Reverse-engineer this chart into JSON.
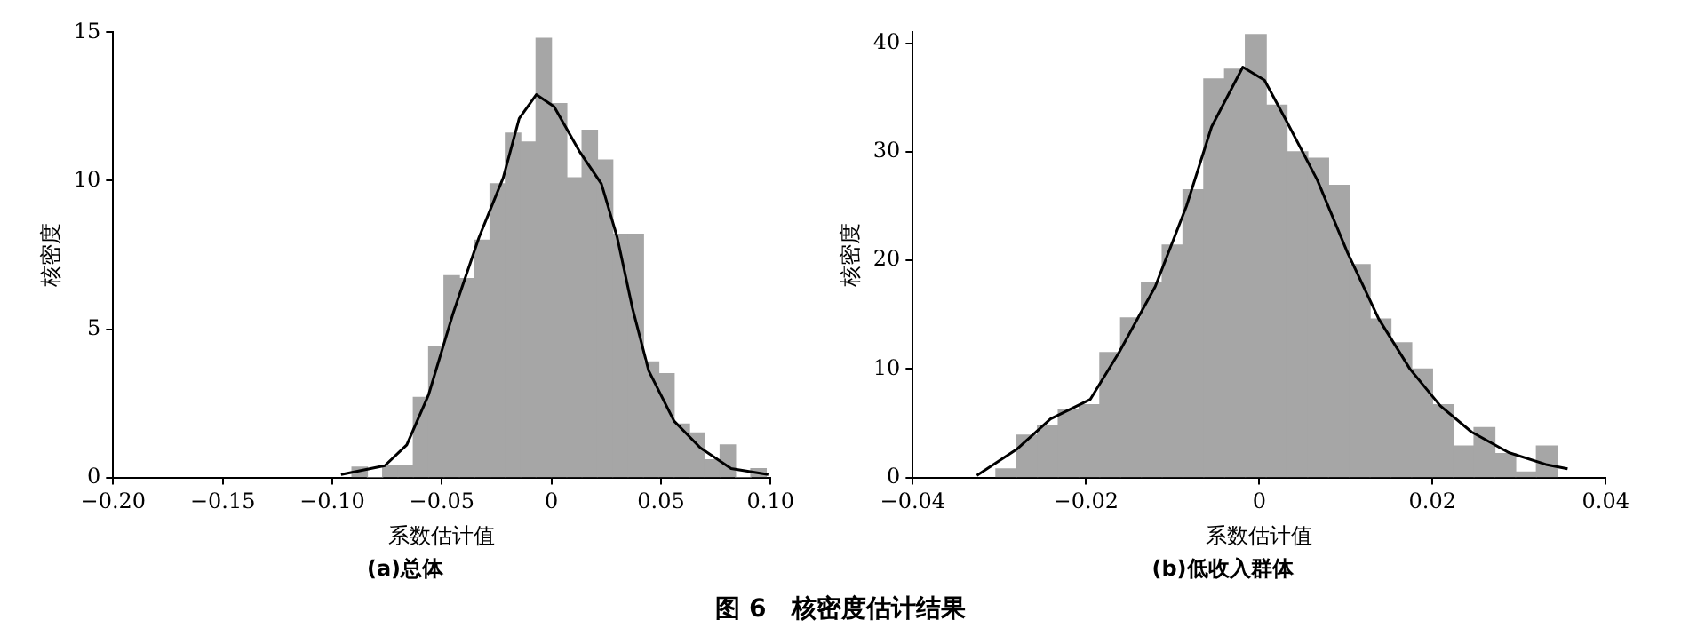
{
  "chart_data": [
    {
      "type": "histogram",
      "title": "(a)总体",
      "xlabel": "系数估计值",
      "ylabel": "核密度",
      "color": "#a6a6a6",
      "bins": [
        -0.091,
        -0.084,
        -0.077,
        -0.07,
        -0.063,
        -0.056,
        -0.049,
        -0.042,
        -0.035,
        -0.028,
        -0.021,
        -0.014,
        -0.007,
        0,
        0.007,
        0.014,
        0.021,
        0.028,
        0.035,
        0.042,
        0.049,
        0.056,
        0.063,
        0.07,
        0.077,
        0.084,
        0.091,
        0.098
      ],
      "values": [
        0.35,
        0,
        0.4,
        0.4,
        2.7,
        4.4,
        6.8,
        6.7,
        8.0,
        9.9,
        11.6,
        11.3,
        14.8,
        12.6,
        10.1,
        11.7,
        10.7,
        8.2,
        8.2,
        3.9,
        3.5,
        1.8,
        1.5,
        0.6,
        1.1,
        0,
        0.3
      ],
      "series": [
        {
          "type": "line",
          "color": "#000000",
          "x": [
            -0.096,
            -0.076,
            -0.066,
            -0.056,
            -0.045,
            -0.033,
            -0.022,
            -0.0147,
            -0.0069,
            0.0012,
            0.0127,
            0.0228,
            0.03,
            0.037,
            0.0444,
            0.056,
            0.068,
            0.082,
            0.099
          ],
          "values": [
            0.1,
            0.4,
            1.1,
            2.8,
            5.5,
            8.1,
            10.1,
            12.1,
            12.9,
            12.5,
            11.0,
            9.9,
            8.1,
            5.7,
            3.6,
            1.9,
            1.0,
            0.3,
            0.1
          ]
        }
      ],
      "marker": "none",
      "grid": false,
      "legend": false,
      "xlim": [
        -0.2,
        0.1
      ],
      "xticks": [
        {
          "value": -0.2,
          "label": "−0.20"
        },
        {
          "value": -0.15,
          "label": "−0.15"
        },
        {
          "value": -0.1,
          "label": "−0.10"
        },
        {
          "value": -0.05,
          "label": "−0.05"
        },
        0,
        {
          "value": 0.05,
          "label": "0.05"
        },
        {
          "value": 0.1,
          "label": "0.10"
        }
      ],
      "ylim": [
        0,
        15
      ],
      "yticks": [
        0,
        5,
        10,
        15
      ],
      "annotations": [
        "图 6　核密度估计结果"
      ]
    },
    {
      "type": "histogram",
      "title": "(b)低收入群体",
      "xlabel": "系数估计值",
      "ylabel": "核密度",
      "color": "#a6a6a6",
      "bins": [
        -0.0304,
        -0.028,
        -0.0256,
        -0.0232,
        -0.0208,
        -0.0184,
        -0.016,
        -0.0136,
        -0.0112,
        -0.0088,
        -0.0064,
        -0.004,
        -0.0016,
        0.0008,
        0.0032,
        0.0056,
        0.008,
        0.0104,
        0.0128,
        0.0152,
        0.0176,
        0.02,
        0.0224,
        0.0248,
        0.0272,
        0.0296,
        0.032,
        0.0344
      ],
      "values": [
        0.8,
        3.9,
        4.8,
        6.3,
        6.7,
        11.5,
        14.7,
        17.9,
        21.4,
        26.5,
        36.7,
        37.6,
        40.8,
        34.3,
        30.0,
        29.4,
        26.9,
        19.6,
        14.6,
        12.4,
        10.0,
        6.7,
        2.9,
        4.6,
        2.2,
        0.5,
        2.9
      ],
      "series": [
        {
          "type": "line",
          "color": "#000000",
          "x": [
            -0.0326,
            -0.028,
            -0.0241,
            -0.0195,
            -0.0162,
            -0.012,
            -0.0084,
            -0.0055,
            -0.0019,
            0.0006,
            0.0031,
            0.0067,
            0.0102,
            0.0138,
            0.0174,
            0.0209,
            0.0245,
            0.0288,
            0.0331,
            0.0356
          ],
          "values": [
            0.2,
            2.6,
            5.4,
            7.2,
            11.5,
            17.6,
            25.0,
            32.3,
            37.8,
            36.6,
            32.9,
            27.4,
            20.7,
            14.6,
            10.0,
            6.6,
            4.2,
            2.3,
            1.2,
            0.8
          ]
        }
      ],
      "marker": "none",
      "grid": false,
      "legend": false,
      "xlim": [
        -0.04,
        0.04
      ],
      "xticks": [
        {
          "value": -0.04,
          "label": "−0.04"
        },
        {
          "value": -0.02,
          "label": "−0.02"
        },
        0,
        {
          "value": 0.02,
          "label": "0.02"
        },
        {
          "value": 0.04,
          "label": "0.04"
        }
      ],
      "ylim": [
        0,
        41
      ],
      "yticks": [
        0,
        10,
        20,
        30,
        40
      ]
    }
  ]
}
